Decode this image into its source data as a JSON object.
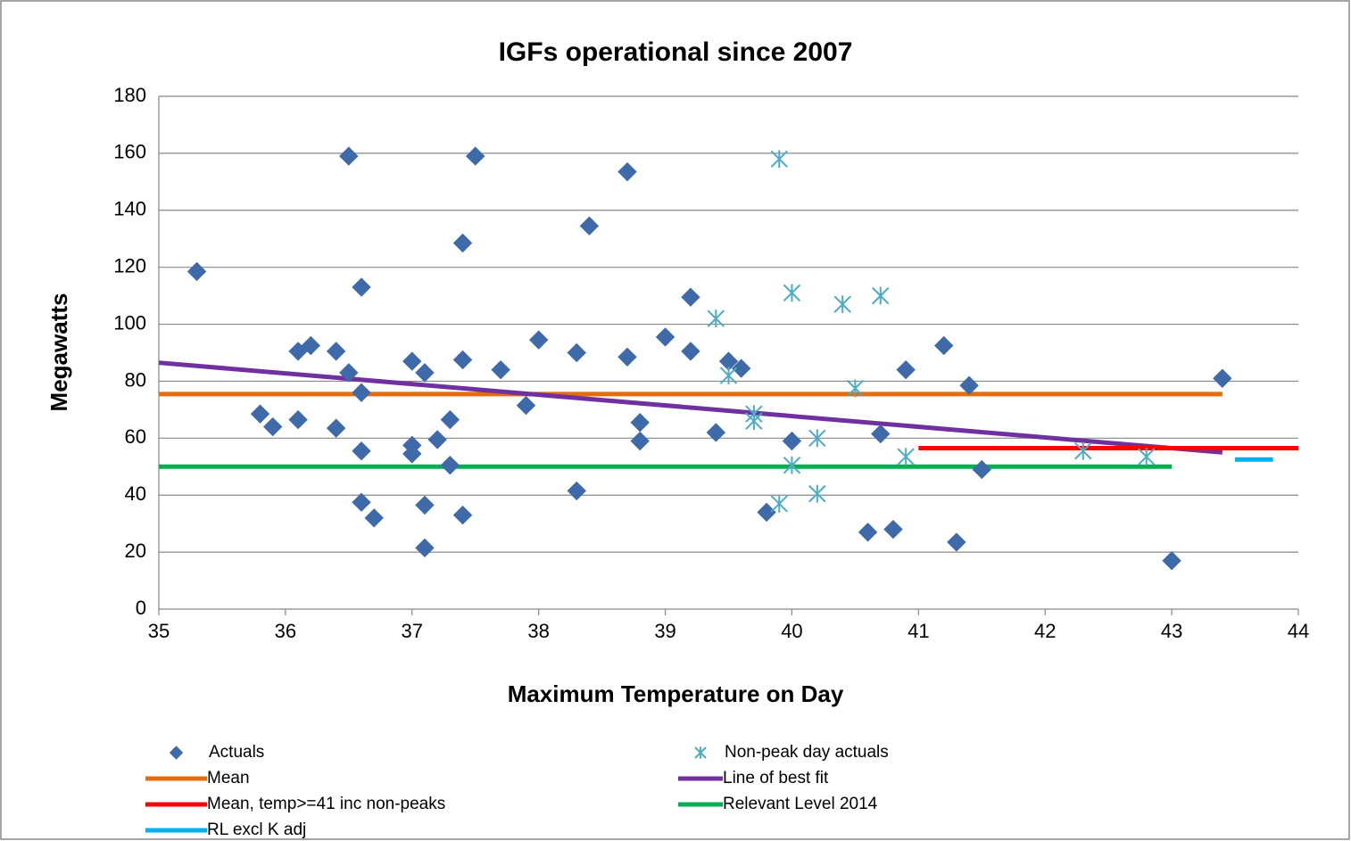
{
  "chart_data": {
    "type": "scatter",
    "title": "IGFs operational since 2007",
    "x_label": "Maximum Temperature on Day",
    "y_label": "Megawatts",
    "xlim": [
      35,
      44
    ],
    "xticks": [
      35,
      36,
      37,
      38,
      39,
      40,
      41,
      42,
      43,
      44
    ],
    "ylim": [
      0,
      180
    ],
    "yticks": [
      0,
      20,
      40,
      60,
      80,
      100,
      120,
      140,
      160,
      180
    ],
    "grid": true,
    "legend": "bottom",
    "series": [
      {
        "name": "Actuals",
        "kind": "diamond",
        "color": "#3e6aaa",
        "x": [
          35.3,
          35.8,
          35.9,
          36.1,
          36.1,
          36.2,
          36.4,
          36.4,
          36.5,
          36.5,
          36.6,
          36.6,
          36.6,
          36.6,
          36.7,
          37,
          37,
          37,
          37.1,
          37.1,
          37.1,
          37.2,
          37.3,
          37.3,
          37.4,
          37.4,
          37.4,
          37.5,
          37.7,
          37.9,
          38,
          38.3,
          38.3,
          38.4,
          38.7,
          38.7,
          38.8,
          38.8,
          39,
          39.2,
          39.2,
          39.4,
          39.5,
          39.6,
          39.8,
          40,
          40.6,
          40.7,
          40.8,
          40.9,
          41.2,
          41.3,
          41.4,
          41.5,
          43,
          43.4
        ],
        "values": [
          118.5,
          68.5,
          64,
          90.5,
          66.5,
          92.5,
          90.5,
          63.5,
          159,
          83,
          113,
          76,
          55.5,
          37.5,
          32,
          87,
          57.5,
          54.5,
          83,
          36.5,
          21.5,
          59.5,
          66.5,
          50.5,
          128.5,
          87.5,
          33,
          159,
          84,
          71.5,
          94.5,
          90,
          41.5,
          134.5,
          153.5,
          88.5,
          65.5,
          59,
          95.5,
          109.5,
          90.5,
          62,
          87,
          84.5,
          34,
          59,
          27,
          61.5,
          28,
          84,
          92.5,
          23.5,
          78.5,
          49,
          17,
          81
        ]
      },
      {
        "name": "Non-peak day actuals",
        "kind": "asterisk",
        "color": "#4bacc6",
        "x": [
          39.4,
          39.5,
          39.7,
          39.7,
          39.9,
          39.9,
          40,
          40,
          40.2,
          40.2,
          40.4,
          40.5,
          40.7,
          40.9,
          42.3,
          42.8
        ],
        "values": [
          102,
          82,
          68.5,
          66,
          158,
          37,
          111,
          50.5,
          60,
          40.5,
          107,
          77.5,
          110,
          53.5,
          55.5,
          53.5
        ]
      },
      {
        "name": "Mean",
        "kind": "line",
        "color": "#e46c0a",
        "x": [
          35,
          43.4
        ],
        "values": [
          75.5,
          75.5
        ]
      },
      {
        "name": "Line of best fit",
        "kind": "line",
        "color": "#7030a0",
        "x": [
          35,
          43.4
        ],
        "values": [
          86.5,
          55
        ]
      },
      {
        "name": "Mean, temp>=41 inc non-peaks",
        "kind": "line",
        "color": "#ff0000",
        "x": [
          41,
          44
        ],
        "values": [
          56.5,
          56.5
        ]
      },
      {
        "name": "Relevant Level 2014",
        "kind": "line",
        "color": "#00b050",
        "x": [
          35,
          43
        ],
        "values": [
          50,
          50
        ]
      },
      {
        "name": "RL excl K adj",
        "kind": "line",
        "color": "#00b0f0",
        "x": [
          43.5,
          43.8
        ],
        "values": [
          52.5,
          52.5
        ]
      }
    ]
  }
}
